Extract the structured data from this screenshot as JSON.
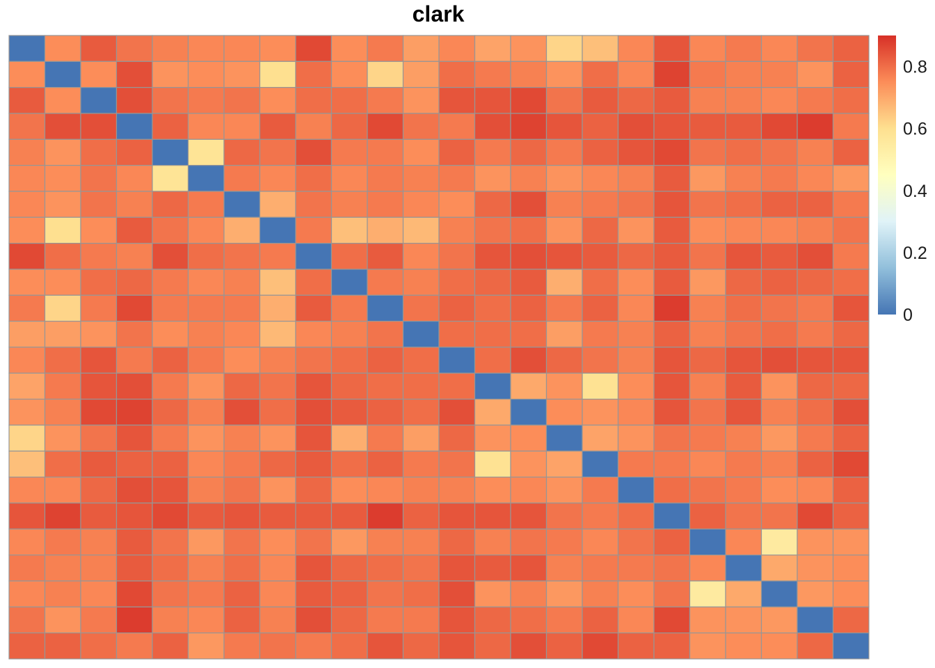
{
  "chart_data": {
    "type": "heatmap",
    "title": "clark",
    "xlabel": "",
    "ylabel": "",
    "rows": 24,
    "cols": 24,
    "legend": {
      "placement": "right",
      "ticks": [
        0,
        0.2,
        0.4,
        0.6,
        0.8
      ],
      "tick_labels": [
        "0",
        "0.2",
        "0.4",
        "0.6",
        "0.8"
      ],
      "range": [
        0,
        0.9
      ]
    },
    "colors": {
      "low": "#4575B4",
      "mid": "#FFFFBF",
      "high": "#D73027",
      "stops": [
        "#4575B4",
        "#91BFDB",
        "#E0F3F8",
        "#FFFFBF",
        "#FEE090",
        "#FC8D59",
        "#D73027"
      ],
      "grid_line": "#969696"
    },
    "values": [
      [
        0.0,
        0.75,
        0.83,
        0.79,
        0.77,
        0.76,
        0.76,
        0.75,
        0.86,
        0.75,
        0.78,
        0.72,
        0.76,
        0.71,
        0.74,
        0.62,
        0.66,
        0.76,
        0.84,
        0.76,
        0.78,
        0.76,
        0.79,
        0.82
      ],
      [
        0.75,
        0.0,
        0.75,
        0.85,
        0.74,
        0.75,
        0.74,
        0.6,
        0.8,
        0.75,
        0.62,
        0.72,
        0.8,
        0.78,
        0.77,
        0.74,
        0.8,
        0.76,
        0.87,
        0.78,
        0.77,
        0.77,
        0.74,
        0.82
      ],
      [
        0.83,
        0.75,
        0.0,
        0.85,
        0.79,
        0.78,
        0.79,
        0.75,
        0.8,
        0.8,
        0.78,
        0.74,
        0.84,
        0.84,
        0.86,
        0.79,
        0.83,
        0.81,
        0.83,
        0.77,
        0.77,
        0.76,
        0.78,
        0.8
      ],
      [
        0.79,
        0.85,
        0.85,
        0.0,
        0.82,
        0.76,
        0.76,
        0.83,
        0.77,
        0.81,
        0.86,
        0.79,
        0.78,
        0.85,
        0.87,
        0.84,
        0.82,
        0.85,
        0.84,
        0.83,
        0.83,
        0.86,
        0.88,
        0.78
      ],
      [
        0.77,
        0.74,
        0.8,
        0.82,
        0.0,
        0.58,
        0.81,
        0.79,
        0.85,
        0.78,
        0.78,
        0.75,
        0.82,
        0.78,
        0.81,
        0.78,
        0.82,
        0.84,
        0.86,
        0.79,
        0.8,
        0.79,
        0.77,
        0.82
      ],
      [
        0.76,
        0.75,
        0.79,
        0.76,
        0.58,
        0.0,
        0.78,
        0.76,
        0.8,
        0.76,
        0.78,
        0.77,
        0.78,
        0.74,
        0.77,
        0.74,
        0.76,
        0.77,
        0.83,
        0.73,
        0.77,
        0.78,
        0.76,
        0.73
      ],
      [
        0.76,
        0.74,
        0.79,
        0.77,
        0.81,
        0.78,
        0.0,
        0.69,
        0.79,
        0.77,
        0.78,
        0.76,
        0.75,
        0.81,
        0.85,
        0.77,
        0.78,
        0.79,
        0.84,
        0.79,
        0.8,
        0.82,
        0.82,
        0.78
      ],
      [
        0.75,
        0.6,
        0.75,
        0.83,
        0.79,
        0.76,
        0.69,
        0.0,
        0.78,
        0.66,
        0.69,
        0.67,
        0.77,
        0.79,
        0.8,
        0.74,
        0.81,
        0.74,
        0.83,
        0.75,
        0.76,
        0.76,
        0.77,
        0.79
      ],
      [
        0.86,
        0.8,
        0.78,
        0.77,
        0.85,
        0.8,
        0.79,
        0.78,
        0.0,
        0.8,
        0.83,
        0.76,
        0.79,
        0.84,
        0.85,
        0.84,
        0.83,
        0.81,
        0.83,
        0.79,
        0.84,
        0.83,
        0.85,
        0.78
      ],
      [
        0.75,
        0.75,
        0.8,
        0.81,
        0.78,
        0.76,
        0.77,
        0.66,
        0.8,
        0.0,
        0.78,
        0.77,
        0.8,
        0.81,
        0.83,
        0.69,
        0.8,
        0.75,
        0.83,
        0.73,
        0.81,
        0.82,
        0.81,
        0.8
      ],
      [
        0.78,
        0.62,
        0.78,
        0.86,
        0.78,
        0.78,
        0.78,
        0.69,
        0.83,
        0.78,
        0.0,
        0.79,
        0.82,
        0.8,
        0.82,
        0.78,
        0.82,
        0.76,
        0.88,
        0.77,
        0.8,
        0.79,
        0.78,
        0.84
      ],
      [
        0.72,
        0.72,
        0.74,
        0.79,
        0.75,
        0.77,
        0.76,
        0.67,
        0.76,
        0.77,
        0.79,
        0.0,
        0.8,
        0.8,
        0.8,
        0.72,
        0.78,
        0.77,
        0.82,
        0.77,
        0.79,
        0.8,
        0.78,
        0.81
      ],
      [
        0.76,
        0.8,
        0.84,
        0.78,
        0.82,
        0.78,
        0.75,
        0.77,
        0.79,
        0.8,
        0.82,
        0.8,
        0.0,
        0.8,
        0.85,
        0.81,
        0.79,
        0.77,
        0.84,
        0.81,
        0.84,
        0.85,
        0.84,
        0.84
      ],
      [
        0.71,
        0.78,
        0.84,
        0.85,
        0.78,
        0.74,
        0.81,
        0.79,
        0.84,
        0.81,
        0.8,
        0.8,
        0.8,
        0.0,
        0.7,
        0.74,
        0.59,
        0.75,
        0.84,
        0.77,
        0.83,
        0.74,
        0.81,
        0.81
      ],
      [
        0.74,
        0.77,
        0.86,
        0.87,
        0.81,
        0.77,
        0.85,
        0.8,
        0.85,
        0.83,
        0.82,
        0.8,
        0.85,
        0.7,
        0.0,
        0.75,
        0.74,
        0.76,
        0.84,
        0.79,
        0.84,
        0.77,
        0.8,
        0.85
      ],
      [
        0.62,
        0.74,
        0.79,
        0.84,
        0.78,
        0.74,
        0.77,
        0.74,
        0.84,
        0.69,
        0.78,
        0.72,
        0.81,
        0.74,
        0.75,
        0.0,
        0.71,
        0.74,
        0.79,
        0.78,
        0.77,
        0.73,
        0.78,
        0.82
      ],
      [
        0.66,
        0.8,
        0.83,
        0.82,
        0.82,
        0.76,
        0.78,
        0.81,
        0.83,
        0.8,
        0.82,
        0.78,
        0.79,
        0.59,
        0.74,
        0.71,
        0.0,
        0.78,
        0.78,
        0.76,
        0.78,
        0.77,
        0.82,
        0.86
      ],
      [
        0.76,
        0.76,
        0.81,
        0.85,
        0.84,
        0.77,
        0.79,
        0.74,
        0.81,
        0.75,
        0.76,
        0.77,
        0.77,
        0.75,
        0.76,
        0.74,
        0.78,
        0.0,
        0.8,
        0.79,
        0.78,
        0.75,
        0.76,
        0.82
      ],
      [
        0.84,
        0.87,
        0.83,
        0.84,
        0.86,
        0.83,
        0.84,
        0.83,
        0.83,
        0.83,
        0.88,
        0.82,
        0.84,
        0.84,
        0.84,
        0.79,
        0.78,
        0.8,
        0.0,
        0.82,
        0.79,
        0.79,
        0.86,
        0.82
      ],
      [
        0.76,
        0.78,
        0.77,
        0.83,
        0.79,
        0.73,
        0.79,
        0.75,
        0.79,
        0.73,
        0.77,
        0.77,
        0.81,
        0.77,
        0.79,
        0.78,
        0.76,
        0.79,
        0.82,
        0.0,
        0.76,
        0.55,
        0.74,
        0.74
      ],
      [
        0.78,
        0.77,
        0.77,
        0.83,
        0.8,
        0.77,
        0.8,
        0.76,
        0.84,
        0.81,
        0.8,
        0.79,
        0.84,
        0.83,
        0.84,
        0.77,
        0.78,
        0.78,
        0.79,
        0.76,
        0.0,
        0.7,
        0.74,
        0.75
      ],
      [
        0.76,
        0.77,
        0.76,
        0.86,
        0.79,
        0.78,
        0.82,
        0.76,
        0.83,
        0.82,
        0.79,
        0.8,
        0.85,
        0.74,
        0.77,
        0.73,
        0.77,
        0.75,
        0.79,
        0.55,
        0.7,
        0.0,
        0.73,
        0.75
      ],
      [
        0.79,
        0.74,
        0.78,
        0.88,
        0.77,
        0.76,
        0.82,
        0.77,
        0.85,
        0.81,
        0.78,
        0.78,
        0.84,
        0.81,
        0.8,
        0.78,
        0.82,
        0.76,
        0.86,
        0.74,
        0.74,
        0.73,
        0.0,
        0.81
      ],
      [
        0.82,
        0.82,
        0.8,
        0.78,
        0.82,
        0.73,
        0.78,
        0.79,
        0.78,
        0.8,
        0.84,
        0.81,
        0.84,
        0.81,
        0.85,
        0.82,
        0.86,
        0.82,
        0.82,
        0.74,
        0.75,
        0.75,
        0.81,
        0.0
      ]
    ]
  }
}
